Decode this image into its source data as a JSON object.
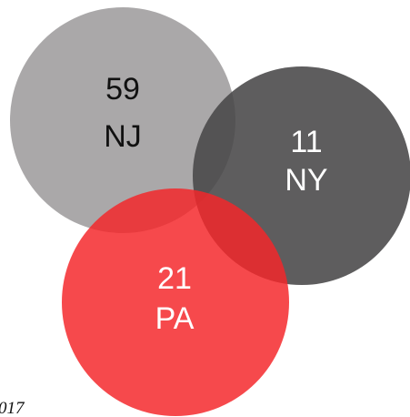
{
  "nodes": [
    {
      "value": "59",
      "label": "NJ"
    },
    {
      "value": "11",
      "label": "NY"
    },
    {
      "value": "21",
      "label": "PA"
    }
  ],
  "footer": "017"
}
